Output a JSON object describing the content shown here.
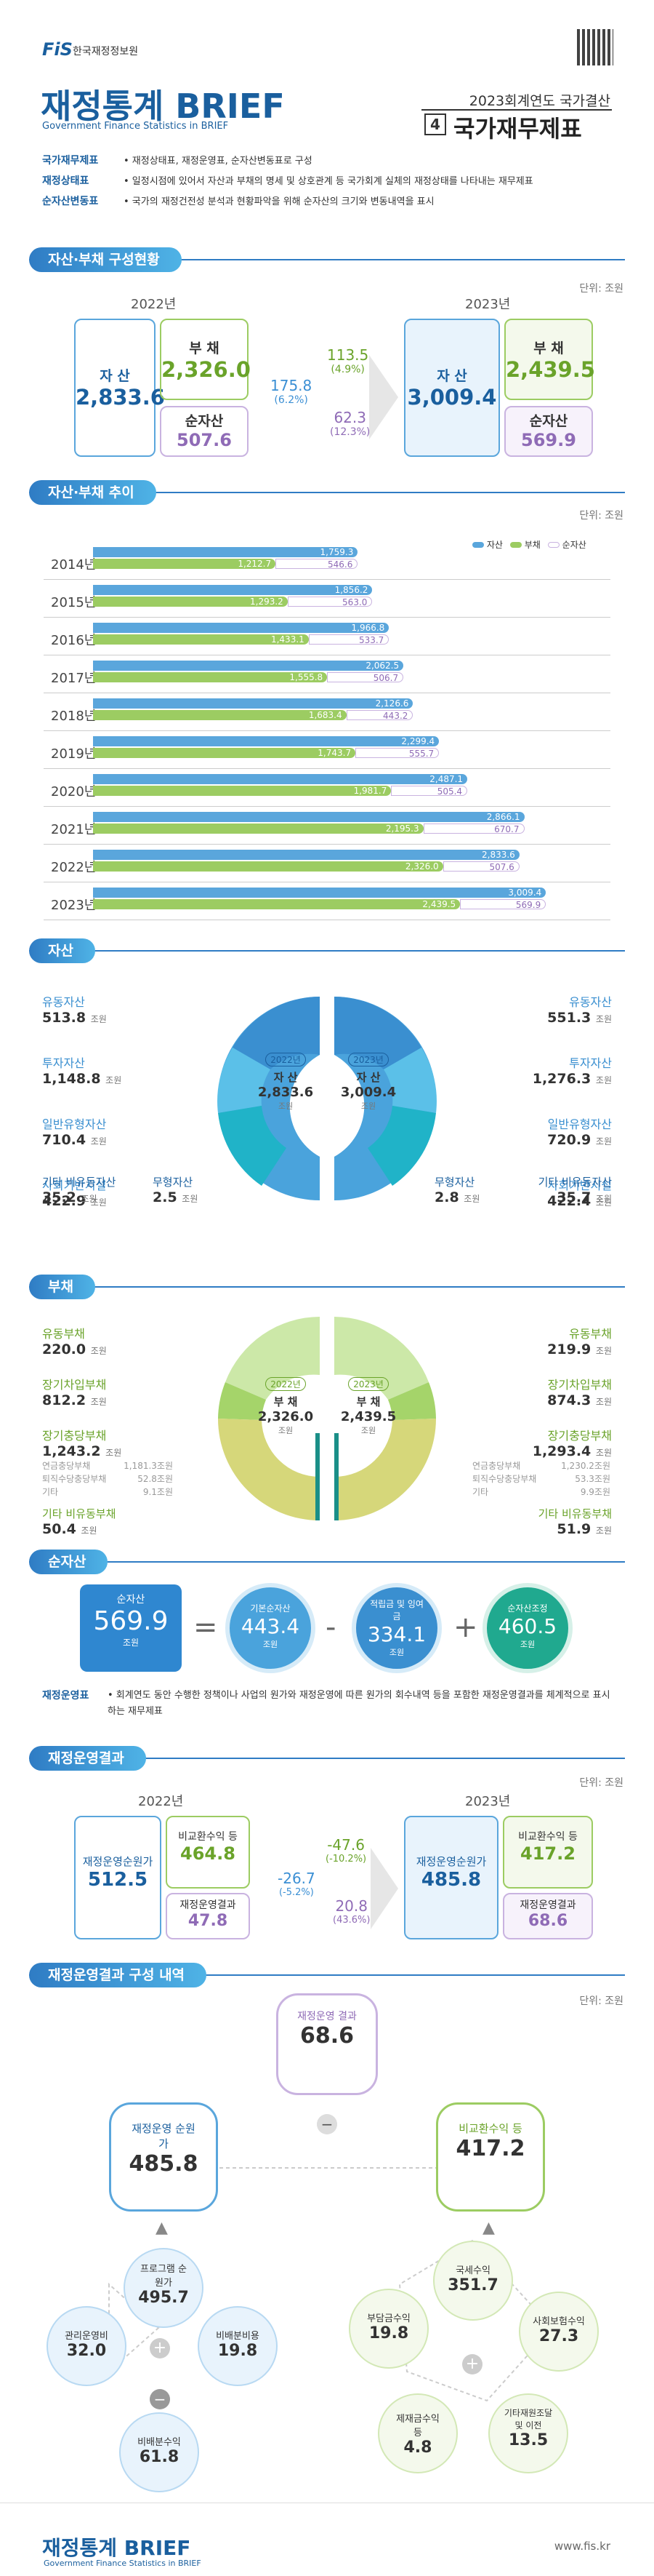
{
  "header": {
    "org": "한국재정정보원",
    "title": "재정통계",
    "title_en": "BRIEF",
    "subtitle": "Government Finance Statistics in BRIEF",
    "right_top": "2023회계연도 국가결산",
    "num": "4",
    "right_title": "국가재무제표"
  },
  "defs": [
    {
      "term": "국가재무제표",
      "desc": "• 재정상태표, 재정운영표, 순자산변동표로 구성"
    },
    {
      "term": "재정상태표",
      "desc": "• 일정시점에 있어서 자산과 부채의 명세 및 상호관계 등 국가회계 실체의 재정상태를 나타내는 재무제표"
    },
    {
      "term": "순자산변동표",
      "desc": "• 국가의 재정건전성 분석과 현황파악을 위해 순자산의 크기와 변동내역을 표시"
    }
  ],
  "s1": {
    "title": "자산·부채 구성현황",
    "unit": "단위: 조원",
    "y1": "2022년",
    "y2": "2023년",
    "a_l": "자 산",
    "a1": "2,833.6",
    "l_l": "부 채",
    "l1": "2,326.0",
    "n_l": "순자산",
    "n1": "507.6",
    "a2": "3,009.4",
    "l2": "2,439.5",
    "n2": "569.9",
    "d_a": "175.8",
    "d_a_p": "(6.2%)",
    "d_l": "113.5",
    "d_l_p": "(4.9%)",
    "d_n": "62.3",
    "d_n_p": "(12.3%)"
  },
  "s2": {
    "title": "자산·부채 추이",
    "unit": "단위: 조원",
    "legend": [
      "자산",
      "부채",
      "순자산"
    ],
    "colors": {
      "asset": "#5aa6dc",
      "liab": "#9ccc62",
      "net": "#c9b3e0"
    }
  },
  "chart_data": {
    "type": "bar",
    "title": "자산·부채 추이",
    "categories": [
      "2014년",
      "2015년",
      "2016년",
      "2017년",
      "2018년",
      "2019년",
      "2020년",
      "2021년",
      "2022년",
      "2023년"
    ],
    "series": [
      {
        "name": "자산",
        "values": [
          1759.3,
          1856.2,
          1966.8,
          2062.5,
          2126.6,
          2299.4,
          2487.1,
          2866.1,
          2833.6,
          3009.4
        ],
        "labels": [
          "1,759.3",
          "1,856.2",
          "1,966.8",
          "2,062.5",
          "2,126.6",
          "2,299.4",
          "2,487.1",
          "2,866.1",
          "2,833.6",
          "3,009.4"
        ]
      },
      {
        "name": "부채",
        "values": [
          1212.7,
          1293.2,
          1433.1,
          1555.8,
          1683.4,
          1743.7,
          1981.7,
          2195.3,
          2326.0,
          2439.5
        ],
        "labels": [
          "1,212.7",
          "1,293.2",
          "1,433.1",
          "1,555.8",
          "1,683.4",
          "1,743.7",
          "1,981.7",
          "2,195.3",
          "2,326.0",
          "2,439.5"
        ]
      },
      {
        "name": "순자산",
        "values": [
          546.6,
          563.0,
          533.7,
          506.7,
          443.2,
          555.7,
          505.4,
          670.7,
          507.6,
          569.9
        ],
        "labels": [
          "546.6",
          "563.0",
          "533.7",
          "506.7",
          "443.2",
          "555.7",
          "505.4",
          "670.7",
          "507.6",
          "569.9"
        ]
      }
    ]
  },
  "s3": {
    "title": "자산",
    "unit": "조원",
    "left": [
      {
        "k": "유동자산",
        "v": "513.8"
      },
      {
        "k": "투자자산",
        "v": "1,148.8"
      },
      {
        "k": "일반유형자산",
        "v": "710.4"
      },
      {
        "k": "사회기반시설",
        "v": "422.9"
      },
      {
        "k": "기타 비유동자산",
        "v": "35.2"
      },
      {
        "k": "무형자산",
        "v": "2.5"
      }
    ],
    "right": [
      {
        "k": "유동자산",
        "v": "551.3"
      },
      {
        "k": "투자자산",
        "v": "1,276.3"
      },
      {
        "k": "일반유형자산",
        "v": "720.9"
      },
      {
        "k": "사회기반시설",
        "v": "422.4"
      },
      {
        "k": "무형자산",
        "v": "2.8"
      },
      {
        "k": "기타 비유동자산",
        "v": "35.7"
      }
    ],
    "y1": "2022년",
    "y2": "2023년",
    "cl": "자 산",
    "c1": "2,833.6",
    "c2": "3,009.4"
  },
  "s4": {
    "title": "부채",
    "unit": "조원",
    "left": [
      {
        "k": "유동부채",
        "v": "220.0"
      },
      {
        "k": "장기차입부채",
        "v": "812.2"
      },
      {
        "k": "장기충당부채",
        "v": "1,243.2"
      },
      {
        "k": "기타 비유동부채",
        "v": "50.4"
      }
    ],
    "left_sub": [
      {
        "k": "연금충당부채",
        "v": "1,181.3조원"
      },
      {
        "k": "퇴직수당충당부채",
        "v": "52.8조원"
      },
      {
        "k": "기타",
        "v": "9.1조원"
      }
    ],
    "right": [
      {
        "k": "유동부채",
        "v": "219.9"
      },
      {
        "k": "장기차입부채",
        "v": "874.3"
      },
      {
        "k": "장기충당부채",
        "v": "1,293.4"
      },
      {
        "k": "기타 비유동부채",
        "v": "51.9"
      }
    ],
    "right_sub": [
      {
        "k": "연금충당부채",
        "v": "1,230.2조원"
      },
      {
        "k": "퇴직수당충당부채",
        "v": "53.3조원"
      },
      {
        "k": "기타",
        "v": "9.9조원"
      }
    ],
    "y1": "2022년",
    "y2": "2023년",
    "cl": "부 채",
    "c1": "2,326.0",
    "c2": "2,439.5"
  },
  "s5": {
    "title": "순자산",
    "c1l": "순자산",
    "c1": "569.9",
    "c2l": "기본순자산",
    "c2": "443.4",
    "c3l": "적립금 및 잉여금",
    "c3": "334.1",
    "c4l": "순자산조정",
    "c4": "460.5",
    "u": "조원",
    "eq": "=",
    "minus": "-",
    "plus": "+"
  },
  "def2": {
    "term": "재정운영표",
    "desc": "• 회계연도 동안 수행한 정책이나 사업의 원가와 재정운영에 따른 원가의 회수내역 등을 포함한 재정운영결과를 체계적으로 표시하는 재무제표"
  },
  "s6": {
    "title": "재정운영결과",
    "unit": "단위: 조원",
    "y1": "2022년",
    "y2": "2023년",
    "c_l": "재정운영순원가",
    "c1": "512.5",
    "c2": "485.8",
    "r_l": "비교환수익 등",
    "r1": "464.8",
    "r2": "417.2",
    "x_l": "재정운영결과",
    "x1": "47.8",
    "x2": "68.6",
    "d_c": "-26.7",
    "d_c_p": "(-5.2%)",
    "d_r": "-47.6",
    "d_r_p": "(-10.2%)",
    "d_x": "20.8",
    "d_x_p": "(43.6%)"
  },
  "s7": {
    "title": "재정운영결과 구성 내역",
    "unit": "단위: 조원",
    "top_l": "재정운영 결과",
    "top": "68.6",
    "left_l": "재정운영 순원가",
    "left": "485.8",
    "right_l": "비교환수익 등",
    "right": "417.2",
    "p_l": "프로그램 순원가",
    "p": "495.7",
    "k_l": "관리운영비",
    "k": "32.0",
    "b_l": "비배분비용",
    "b": "19.8",
    "bs_l": "비배분수익",
    "bs": "61.8",
    "t_l": "국세수익",
    "t": "351.7",
    "f_l": "부담금수익",
    "f": "19.8",
    "s_l": "사회보험수익",
    "s": "27.3",
    "j_l": "제재금수익 등",
    "j": "4.8",
    "o_l": "기타재원조달 및 이전",
    "o": "13.5"
  },
  "footer": {
    "title": "재정통계",
    "en": "BRIEF",
    "sub": "Government Finance Statistics in BRIEF",
    "url": "www.fis.kr"
  }
}
